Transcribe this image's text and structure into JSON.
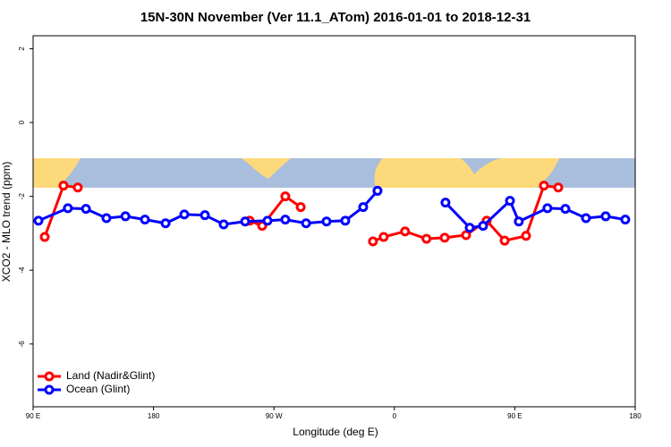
{
  "chart_data": {
    "type": "line",
    "title": "15N-30N November (Ver 11.1_ATom)   2016-01-01 to 2018-12-31",
    "xlabel": "Longitude (deg E)",
    "ylabel": "XCO2 - MLO trend (ppm)",
    "xlim": [
      90,
      540
    ],
    "ylim": [
      -7.7,
      2.35
    ],
    "xticks": [
      {
        "value": 90,
        "label": "90 E"
      },
      180,
      {
        "value": 270,
        "label": "90 W"
      },
      {
        "value": 360,
        "label": "0"
      },
      {
        "value": 450,
        "label": "90 E"
      },
      {
        "value": 540,
        "label": "180"
      }
    ],
    "yticks": [
      -6,
      -4,
      -2,
      0,
      2
    ],
    "legend": "bottom-left",
    "series": [
      {
        "name": "Land (Nadir&Glint)",
        "color": "#ff0000",
        "x": [
          98.7,
          112.7,
          123.4,
          null,
          251.8,
          261.2,
          278.5,
          290,
          null,
          344,
          352,
          368,
          384,
          397.6,
          413.6,
          429,
          442.4,
          458.4,
          471.8,
          482.5
        ],
        "values": [
          -3.1,
          -1.71,
          -1.76,
          null,
          -2.66,
          -2.8,
          -2.0,
          -2.29,
          null,
          -3.22,
          -3.1,
          -2.95,
          -3.15,
          -3.12,
          -3.05,
          -2.66,
          -3.2,
          -3.07,
          -1.71,
          -1.76
        ]
      },
      {
        "name": "Ocean (Glint)",
        "color": "#0000ff",
        "x": [
          94,
          116,
          129.5,
          144.8,
          159,
          173.6,
          189,
          203,
          218.4,
          232.4,
          248.5,
          265.2,
          278.5,
          294,
          309.3,
          323.3,
          336.7,
          347.4,
          null,
          398.2,
          416.3,
          426.3,
          446.4,
          453,
          474.4,
          487.8,
          503.2,
          517.9,
          532.6
        ],
        "values": [
          -2.66,
          -2.32,
          -2.34,
          -2.59,
          -2.54,
          -2.63,
          -2.73,
          -2.49,
          -2.51,
          -2.76,
          -2.68,
          -2.66,
          -2.63,
          -2.73,
          -2.68,
          -2.66,
          -2.29,
          -1.85,
          null,
          -2.17,
          -2.85,
          -2.8,
          -2.12,
          -2.68,
          -2.32,
          -2.34,
          -2.59,
          -2.54,
          -2.63
        ]
      }
    ]
  }
}
